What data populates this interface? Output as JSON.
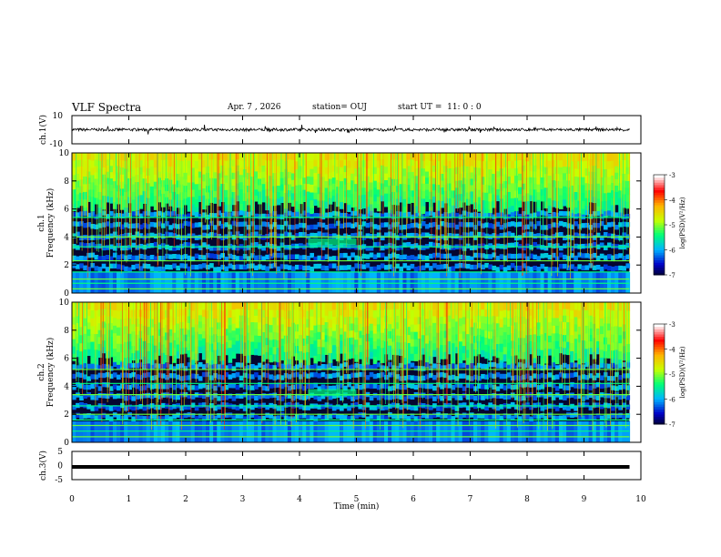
{
  "header": {
    "title": "VLF Spectra",
    "date": "Apr. 7 , 2026",
    "station": "station= OUJ",
    "start": "start UT =  11: 0 : 0"
  },
  "chart_data": [
    {
      "type": "line",
      "panel": "ch1_waveform",
      "ylabel": "ch.1(V)",
      "ylim": [
        -10,
        10
      ],
      "y_ticks": [
        "10",
        "-10"
      ],
      "baseline": 0,
      "noise_amplitude": 1,
      "x_range_min": [
        0,
        9.8
      ],
      "color": "#000000"
    },
    {
      "type": "heatmap",
      "panel": "ch1_spectrogram",
      "xlabel": "Time (min)",
      "ylabel_channel": "ch.1",
      "ylabel": "Frequency (kHz)",
      "ylim": [
        0,
        10
      ],
      "y_ticks": [
        "0",
        "2",
        "4",
        "6",
        "8",
        "10"
      ],
      "x_range_min": [
        0,
        9.8
      ],
      "colorbar": {
        "label": "log(PSD)(V²/Hz)",
        "range": [
          -7,
          -3
        ],
        "ticks": [
          "-3",
          "-4",
          "-5",
          "-6",
          "-7"
        ]
      },
      "features": {
        "high_band_kHz": [
          6,
          10
        ],
        "low_band_kHz": [
          1.5,
          6
        ],
        "bright_lines_kHz": [
          0.3,
          0.7,
          1.0,
          1.5,
          2.3,
          3.3,
          4.0,
          5.4
        ],
        "event_min": [
          4.15,
          5.0
        ],
        "event_kHz": [
          3.4,
          3.9
        ]
      }
    },
    {
      "type": "heatmap",
      "panel": "ch2_spectrogram",
      "ylabel_channel": "ch.2",
      "ylabel": "Frequency (kHz)",
      "ylim": [
        0,
        10
      ],
      "y_ticks": [
        "0",
        "2",
        "4",
        "6",
        "8",
        "10"
      ],
      "x_range_min": [
        0,
        9.8
      ],
      "colorbar": {
        "label": "log(PSD)(V²/Hz)",
        "range": [
          -7,
          -3
        ],
        "ticks": [
          "-3",
          "-4",
          "-5",
          "-6",
          "-7"
        ]
      },
      "features": {
        "high_band_kHz": [
          5.8,
          10
        ],
        "low_band_kHz": [
          1.5,
          5.8
        ],
        "bright_lines_kHz": [
          0.4,
          0.8,
          1.2,
          1.6,
          2.0,
          2.6,
          3.4,
          4.2,
          5.2
        ],
        "event_min": [
          4.15,
          5.0
        ],
        "event_kHz": [
          3.3,
          3.8
        ]
      }
    },
    {
      "type": "line",
      "panel": "ch3_waveform",
      "ylabel": "ch.3(V)",
      "ylim": [
        -5,
        5
      ],
      "y_ticks": [
        "5",
        "0",
        "-5"
      ],
      "baseline": -0.5,
      "x_range_min": [
        0,
        9.8
      ],
      "x_ticks": [
        "0",
        "1",
        "2",
        "3",
        "4",
        "5",
        "6",
        "7",
        "8",
        "9",
        "10"
      ],
      "xlabel": "Time (min)",
      "color": "#000000"
    }
  ],
  "colors": {
    "colormap": [
      "#000000",
      "#0000c8",
      "#00b4ff",
      "#00ff78",
      "#c8ff00",
      "#ffb400",
      "#ff0000",
      "#ffffff"
    ]
  }
}
